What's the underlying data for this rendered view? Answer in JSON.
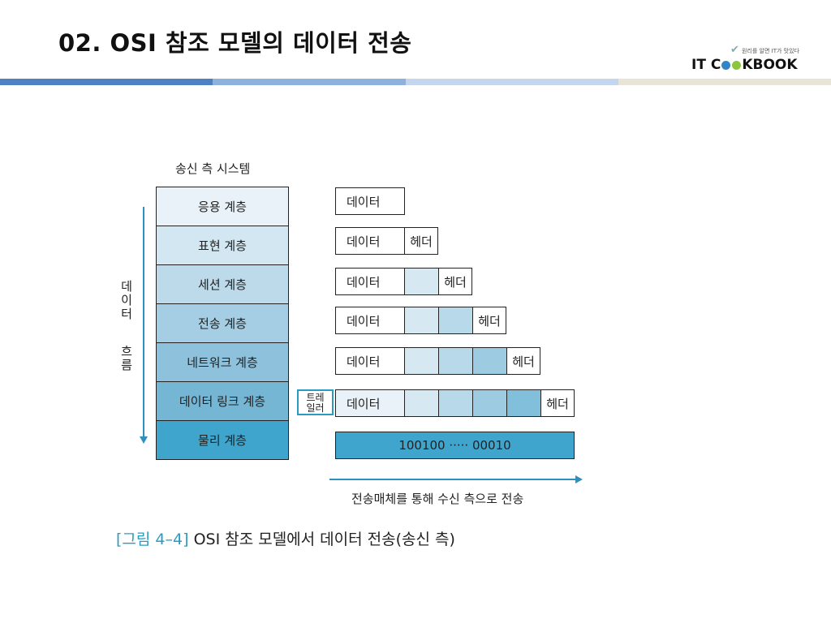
{
  "slide": {
    "title": "02. OSI 참조 모델의 데이터 전송"
  },
  "brand": {
    "tagline": "원리를 알면 IT가 맛있다",
    "word_left": "IT C",
    "word_right": "KBOOK",
    "dot_colors": [
      "#2e86c8",
      "#8cc63f"
    ]
  },
  "header_bar_colors": [
    "#4e81c3",
    "#8eb2de",
    "#c3d6ee",
    "#e8e4d8"
  ],
  "diagram": {
    "title": "송신 측 시스템",
    "layers": [
      {
        "label": "응용 계층",
        "color": "#e8f2f8"
      },
      {
        "label": "표현 계층",
        "color": "#d2e7f1"
      },
      {
        "label": "세션 계층",
        "color": "#bcdaea"
      },
      {
        "label": "전송 계층",
        "color": "#a5cde3"
      },
      {
        "label": "네트워크 계층",
        "color": "#8ec2dc"
      },
      {
        "label": "데이터 링크 계층",
        "color": "#76b6d5"
      },
      {
        "label": "물리 계층",
        "color": "#3fa5cc"
      }
    ],
    "flow_label_top": [
      "데",
      "이",
      "터"
    ],
    "flow_label_bottom": [
      "흐",
      "름"
    ],
    "data_label": "데이터",
    "header_label": "헤더",
    "prior_header_colors": [
      "#d6e8f2",
      "#b8d9ea",
      "#9ccbe2",
      "#82bfdb"
    ],
    "trailer_label_line1": "트레",
    "trailer_label_line2": "일러",
    "bits": "100100 ····· 00010",
    "transmit_label": "전송매체를 통해 수신 측으로 전송"
  },
  "caption": {
    "number": "[그림 4–4]",
    "text": "OSI 참조 모델에서 데이터 전송(송신 측)"
  }
}
